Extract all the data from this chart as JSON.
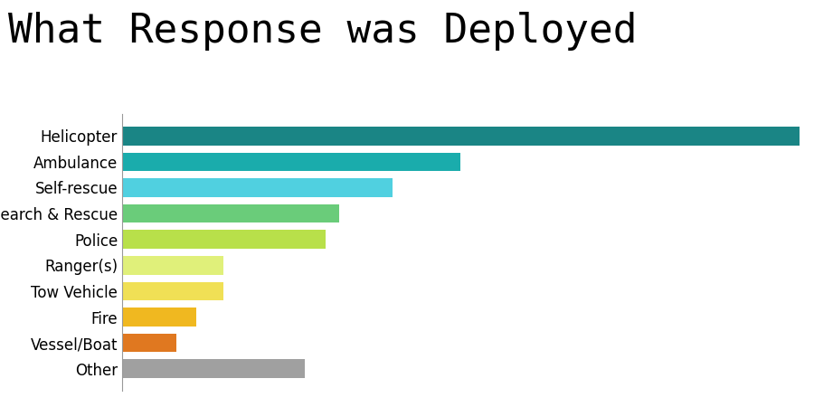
{
  "title": "What Response was Deployed",
  "categories": [
    "Helicopter",
    "Ambulance",
    "Self-rescue",
    "Search & Rescue",
    "Police",
    "Ranger(s)",
    "Tow Vehicle",
    "Fire",
    "Vessel/Boat",
    "Other"
  ],
  "values": [
    100,
    50,
    40,
    32,
    30,
    15,
    15,
    11,
    8,
    27
  ],
  "colors": [
    "#1a8585",
    "#1aacac",
    "#50d0e0",
    "#6acc7a",
    "#b8e04a",
    "#e0f07a",
    "#f0e055",
    "#f0b820",
    "#e07820",
    "#a0a0a0"
  ],
  "title_fontsize": 32,
  "label_fontsize": 12,
  "background_color": "#ffffff"
}
